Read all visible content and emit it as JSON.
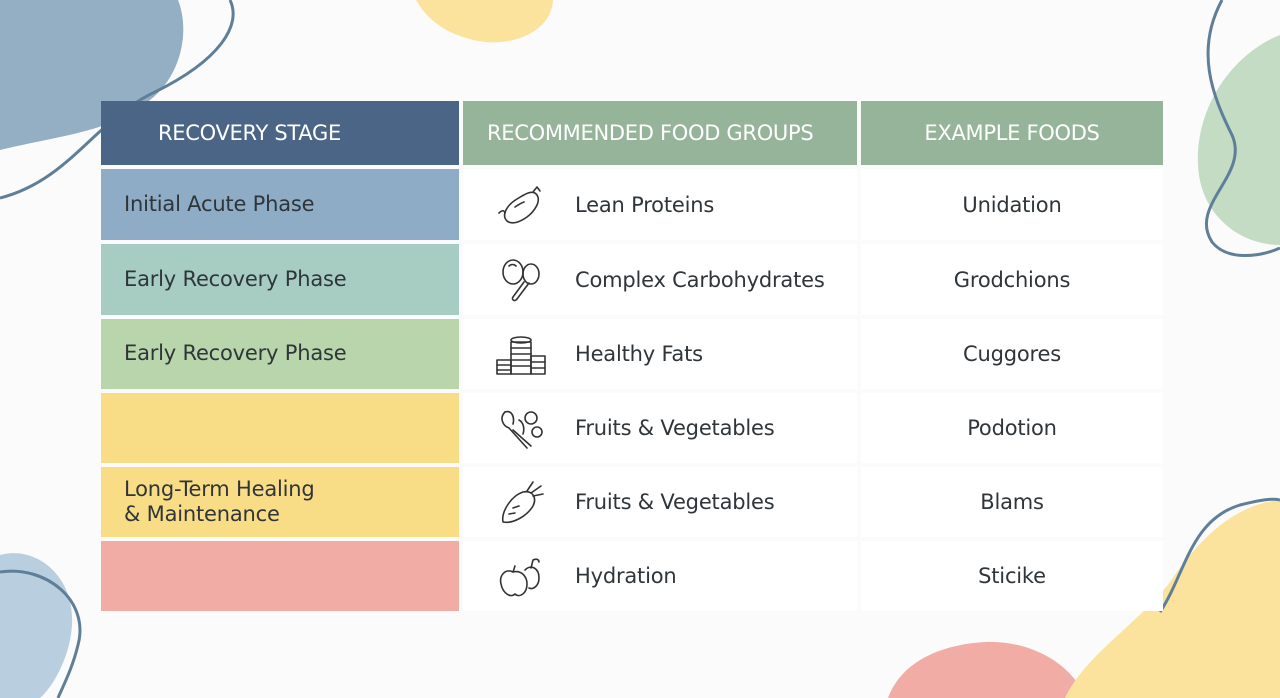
{
  "table": {
    "headers": [
      "RECOVERY STAGE",
      "RECOMMENDED FOOD GROUPS",
      "EXAMPLE FOODS"
    ],
    "rows": [
      {
        "stage": "Initial Acute Phase",
        "stage_color": "#8eacc5",
        "group": "Lean Proteins",
        "icon": "sweet-potato-icon",
        "example": "Unidation"
      },
      {
        "stage": "Early Recovery Phase",
        "stage_color": "#a7cdc3",
        "group": "Complex Carbohydrates",
        "icon": "lentil-beans-icon",
        "example": "Grodchions"
      },
      {
        "stage": "Early Recovery Phase",
        "stage_color": "#b9d5ac",
        "group": "Healthy Fats",
        "icon": "coin-stacks-icon",
        "example": "Cuggores"
      },
      {
        "stage": "",
        "stage_color": "#f8dc86",
        "group": "Fruits & Vegetables",
        "icon": "leafy-vegetables-icon",
        "example": "Podotion"
      },
      {
        "stage_line1": "Long-Term Healing",
        "stage_line2": "& Maintenance",
        "stage_color": "#f8dc86",
        "group": "Fruits & Vegetables",
        "icon": "carrot-icon",
        "example": "Blams"
      },
      {
        "stage": "",
        "stage_color": "#f1aca5",
        "group": "Hydration",
        "icon": "apples-icon",
        "example": "Sticike"
      }
    ]
  },
  "colors": {
    "header_stage_bg": "#4a6585",
    "header_group_bg": "#95b49a",
    "blob_blue": "#94aec4",
    "blob_yellow": "#fbe39e",
    "blob_green": "#c4dcc4",
    "blob_pink": "#f1aca5"
  }
}
